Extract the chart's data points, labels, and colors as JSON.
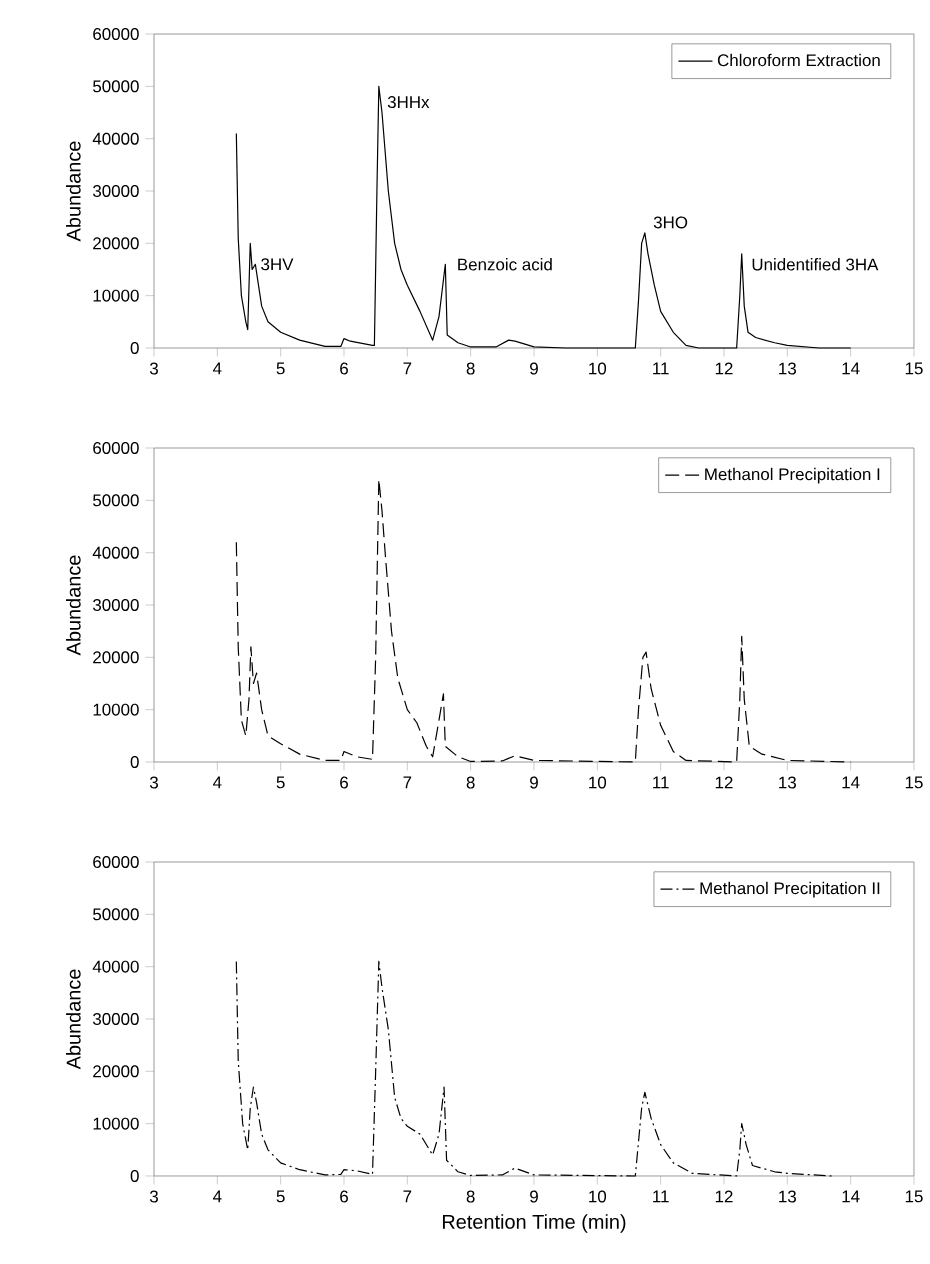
{
  "chart_data": [
    {
      "type": "line",
      "ylabel": "Abundance",
      "xlim": [
        3,
        15
      ],
      "ylim": [
        0,
        60000
      ],
      "xticks": [
        3,
        4,
        5,
        6,
        7,
        8,
        9,
        10,
        11,
        12,
        13,
        14,
        15
      ],
      "yticks": [
        0,
        10000,
        20000,
        30000,
        40000,
        50000,
        60000
      ],
      "legend": "top right",
      "marker": "none",
      "annotations": [
        {
          "text": "3HV",
          "x": 4.55,
          "y": 16000
        },
        {
          "text": "3HHx",
          "x": 6.55,
          "y": 47000
        },
        {
          "text": "Benzoic acid",
          "x": 7.65,
          "y": 16000
        },
        {
          "text": "3HO",
          "x": 10.75,
          "y": 24000
        },
        {
          "text": "Unidentified 3HA",
          "x": 12.3,
          "y": 16000
        }
      ],
      "series": [
        {
          "name": "Chloroform Extraction",
          "color": "#000000",
          "line_style": "solid",
          "x": [
            4.3,
            4.33,
            4.38,
            4.45,
            4.48,
            4.52,
            4.55,
            4.6,
            4.65,
            4.7,
            4.8,
            5.0,
            5.3,
            5.7,
            5.95,
            6.0,
            6.1,
            6.45,
            6.48,
            6.52,
            6.55,
            6.6,
            6.7,
            6.8,
            6.9,
            7.0,
            7.2,
            7.4,
            7.5,
            7.6,
            7.63,
            7.8,
            8.0,
            8.4,
            8.6,
            8.7,
            9.0,
            9.5,
            10.6,
            10.65,
            10.7,
            10.75,
            10.8,
            10.9,
            11.0,
            11.2,
            11.4,
            11.6,
            12.2,
            12.25,
            12.28,
            12.32,
            12.38,
            12.5,
            12.8,
            13.0,
            13.5,
            14.0
          ],
          "values": [
            41000,
            21000,
            10000,
            5000,
            3500,
            20000,
            15000,
            16000,
            12000,
            8000,
            5000,
            3000,
            1500,
            300,
            300,
            1800,
            1300,
            500,
            500,
            30000,
            50000,
            45000,
            30000,
            20000,
            15000,
            12000,
            7000,
            1500,
            6000,
            16000,
            2500,
            1000,
            200,
            200,
            1500,
            1300,
            200,
            0,
            0,
            9000,
            20000,
            22000,
            18000,
            12000,
            7000,
            3000,
            500,
            0,
            0,
            10000,
            18000,
            8000,
            3000,
            2000,
            1000,
            500,
            0,
            0
          ]
        }
      ]
    },
    {
      "type": "line",
      "ylabel": "Abundance",
      "xlim": [
        3,
        15
      ],
      "ylim": [
        0,
        60000
      ],
      "xticks": [
        3,
        4,
        5,
        6,
        7,
        8,
        9,
        10,
        11,
        12,
        13,
        14,
        15
      ],
      "yticks": [
        0,
        10000,
        20000,
        30000,
        40000,
        50000,
        60000
      ],
      "legend": "top right",
      "marker": "none",
      "series": [
        {
          "name": "Methanol Precipitation I",
          "color": "#000000",
          "line_style": "dashed",
          "x": [
            4.3,
            4.33,
            4.38,
            4.45,
            4.5,
            4.53,
            4.57,
            4.62,
            4.7,
            4.8,
            5.0,
            5.3,
            5.7,
            5.95,
            6.0,
            6.2,
            6.45,
            6.5,
            6.55,
            6.6,
            6.65,
            6.75,
            6.85,
            7.0,
            7.15,
            7.3,
            7.4,
            7.5,
            7.57,
            7.6,
            7.8,
            8.0,
            8.5,
            8.7,
            9.0,
            10.6,
            10.65,
            10.72,
            10.77,
            10.85,
            11.0,
            11.2,
            11.4,
            12.2,
            12.25,
            12.28,
            12.32,
            12.4,
            12.6,
            13.0,
            14.0
          ],
          "values": [
            42000,
            22000,
            8000,
            5000,
            12000,
            22000,
            15000,
            17000,
            10000,
            5000,
            3500,
            1500,
            300,
            300,
            2000,
            1000,
            500,
            20000,
            54000,
            48000,
            40000,
            25000,
            16000,
            10000,
            7500,
            3000,
            1000,
            8000,
            13000,
            3000,
            1000,
            100,
            200,
            1200,
            300,
            0,
            10000,
            20000,
            21000,
            14000,
            7000,
            2000,
            300,
            0,
            12000,
            24000,
            12000,
            3000,
            1500,
            300,
            0
          ]
        }
      ]
    },
    {
      "type": "line",
      "xlabel": "Retention Time (min)",
      "ylabel": "Abundance",
      "xlim": [
        3,
        15
      ],
      "ylim": [
        0,
        60000
      ],
      "xticks": [
        3,
        4,
        5,
        6,
        7,
        8,
        9,
        10,
        11,
        12,
        13,
        14,
        15
      ],
      "yticks": [
        0,
        10000,
        20000,
        30000,
        40000,
        50000,
        60000
      ],
      "legend": "top right",
      "marker": "none",
      "series": [
        {
          "name": "Methanol Precipitation II",
          "color": "#000000",
          "line_style": "dashdot",
          "x": [
            4.3,
            4.33,
            4.4,
            4.48,
            4.52,
            4.57,
            4.62,
            4.7,
            4.8,
            5.0,
            5.3,
            5.7,
            5.95,
            6.0,
            6.2,
            6.45,
            6.5,
            6.55,
            6.6,
            6.7,
            6.8,
            6.9,
            7.0,
            7.2,
            7.4,
            7.5,
            7.58,
            7.62,
            7.8,
            8.0,
            8.5,
            8.7,
            9.0,
            10.6,
            10.7,
            10.75,
            10.85,
            11.0,
            11.2,
            11.5,
            12.2,
            12.25,
            12.28,
            12.35,
            12.45,
            12.8,
            13.0,
            13.7
          ],
          "values": [
            41000,
            22000,
            10000,
            5000,
            13000,
            17000,
            14000,
            8000,
            5000,
            2500,
            1200,
            200,
            300,
            1200,
            1000,
            300,
            20000,
            41000,
            36000,
            28000,
            15000,
            11000,
            9500,
            8000,
            4000,
            8000,
            17000,
            3000,
            800,
            100,
            200,
            1500,
            200,
            0,
            13000,
            16000,
            11000,
            6000,
            2500,
            500,
            0,
            5000,
            10000,
            6000,
            2000,
            800,
            500,
            0
          ]
        }
      ]
    }
  ]
}
